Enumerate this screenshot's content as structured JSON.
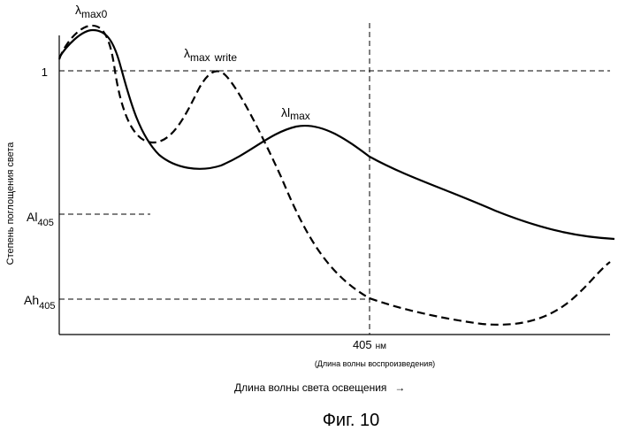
{
  "figure": {
    "caption": "Фиг. 10"
  },
  "axes": {
    "ylabel": "Степень поглощения света",
    "xlabel": "Длина волны света освещения",
    "xlabel_arrow": "→",
    "y_tick_1": "1",
    "ref_wavelength_value": "405",
    "ref_wavelength_unit": "нм",
    "ref_wavelength_note": "(Длина волны воспроизведения)"
  },
  "levels": {
    "al": {
      "main": "Al",
      "sub": "405"
    },
    "ah": {
      "main": "Ah",
      "sub": "405"
    }
  },
  "peaks": {
    "max0": {
      "symbol": "λ",
      "sub": "max0"
    },
    "write": {
      "symbol": "λ",
      "sub": "max",
      "suffix": "write"
    },
    "lmax": {
      "symbol": "λ",
      "mid": "l",
      "sub": "max"
    }
  },
  "curves": [
    {
      "name": "solid-curve",
      "style": "solid"
    },
    {
      "name": "dashed-curve",
      "style": "dashed"
    }
  ]
}
